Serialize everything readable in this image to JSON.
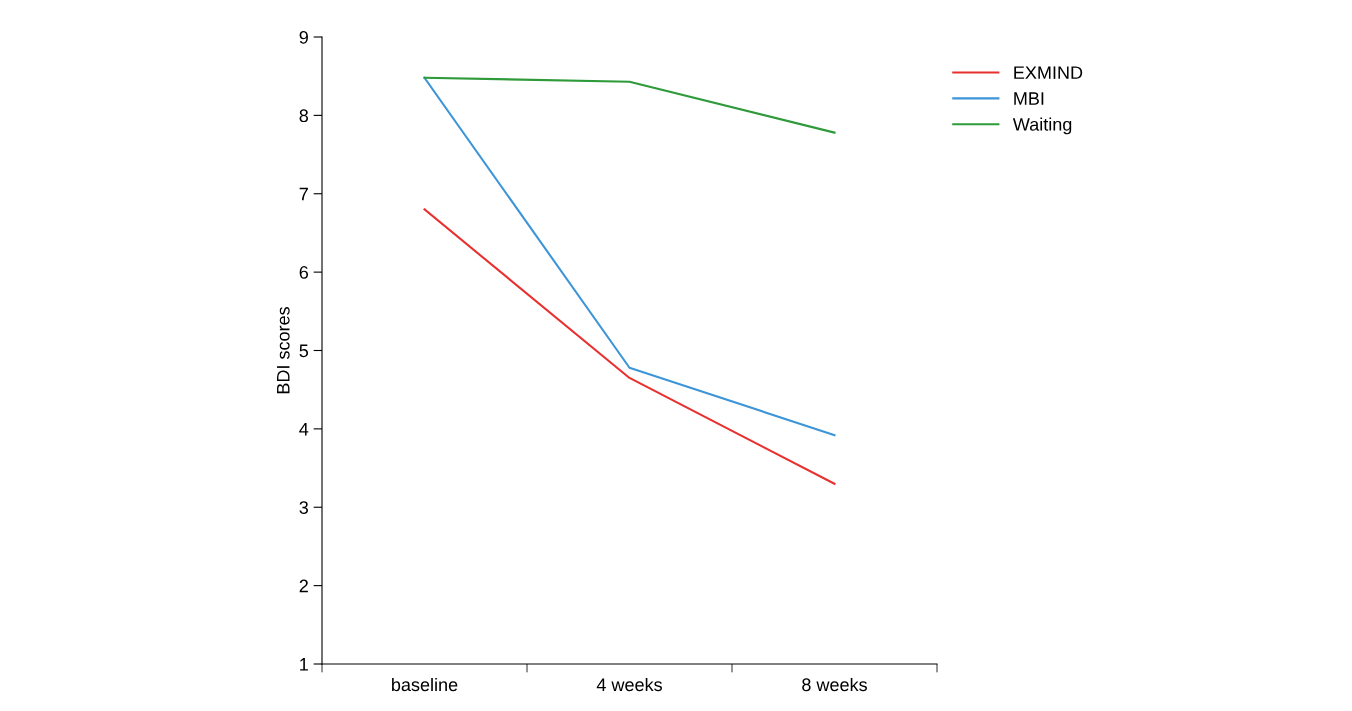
{
  "chart_data": {
    "type": "line",
    "ylabel": "BDI scores",
    "categories": [
      "baseline",
      "4 weeks",
      "8 weeks"
    ],
    "series": [
      {
        "name": "EXMIND",
        "color": "#e8312f",
        "values": [
          6.8,
          4.65,
          3.3
        ]
      },
      {
        "name": "MBI",
        "color": "#3d95d8",
        "values": [
          8.48,
          4.78,
          3.92
        ]
      },
      {
        "name": "Waiting",
        "color": "#2e9a3a",
        "values": [
          8.48,
          8.43,
          7.78
        ]
      }
    ],
    "ylim": [
      1,
      9
    ],
    "yticks": [
      1,
      2,
      3,
      4,
      5,
      6,
      7,
      8,
      9
    ],
    "grid": false,
    "legend": "top right",
    "marker": "none",
    "line_style": "solid"
  }
}
